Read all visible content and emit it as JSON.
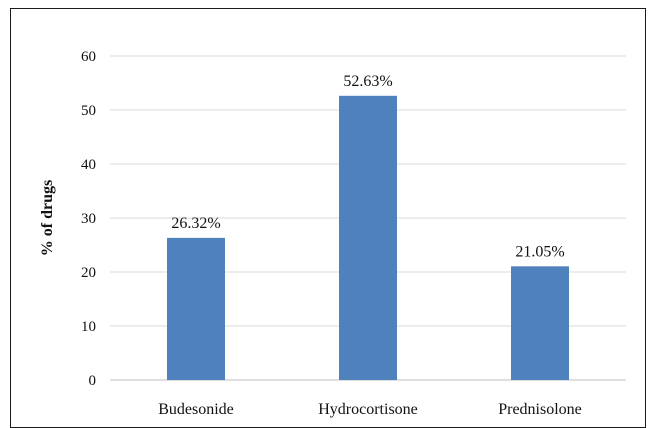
{
  "chart_data": {
    "type": "bar",
    "title": "",
    "xlabel": "",
    "ylabel": "% of drugs",
    "categories": [
      "Budesonide",
      "Hydrocortisone",
      "Prednisolone"
    ],
    "values": [
      26.32,
      52.63,
      21.05
    ],
    "data_labels": [
      "26.32%",
      "52.63%",
      "21.05%"
    ],
    "ylim": [
      0,
      60
    ],
    "yticks": [
      0,
      10,
      20,
      30,
      40,
      50,
      60
    ],
    "grid": true,
    "legend": "none",
    "bar_color": "#4f81bd",
    "grid_color": "#d9d9d9"
  }
}
